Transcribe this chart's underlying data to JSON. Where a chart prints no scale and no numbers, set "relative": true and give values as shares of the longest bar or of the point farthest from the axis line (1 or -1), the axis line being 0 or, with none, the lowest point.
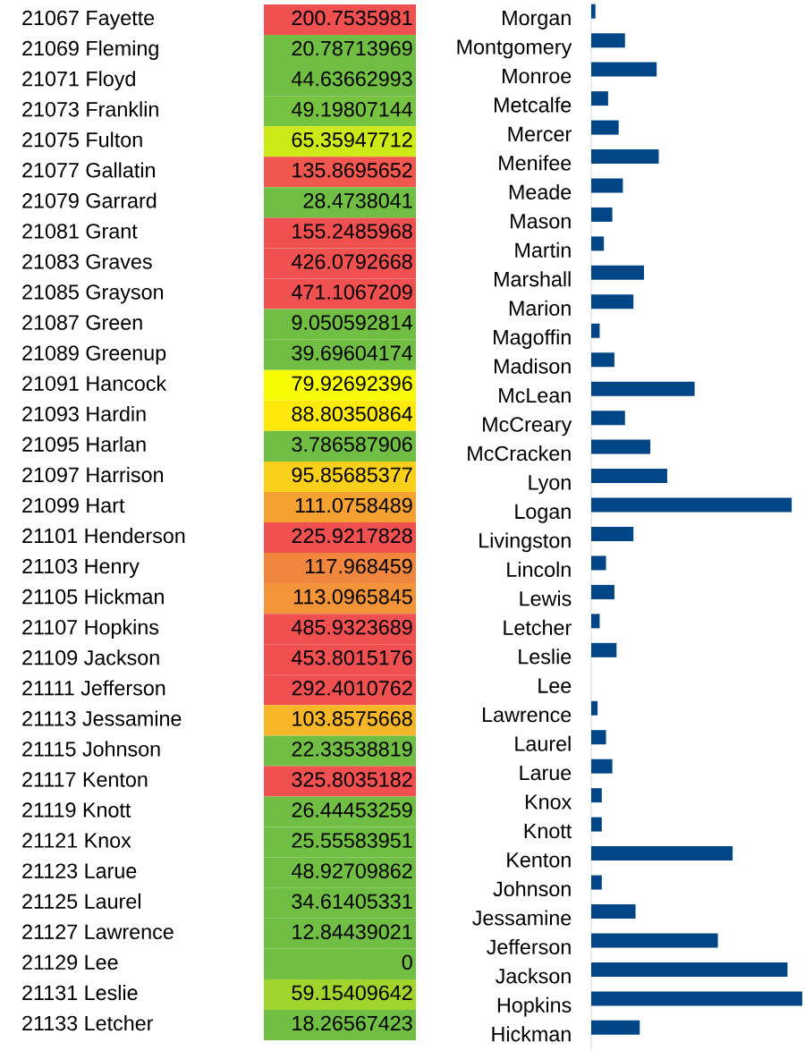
{
  "chart_data": [
    {
      "type": "heatmap",
      "data_labels": true,
      "categories": [
        null
      ],
      "y_categories": [
        "21067 Fayette",
        "21069 Fleming",
        "21071 Floyd",
        "21073 Franklin",
        "21075 Fulton",
        "21077 Gallatin",
        "21079 Garrard",
        "21081 Grant",
        "21083 Graves",
        "21085 Grayson",
        "21087 Green",
        "21089 Greenup",
        "21091 Hancock",
        "21093 Hardin",
        "21095 Harlan",
        "21097 Harrison",
        "21099 Hart",
        "21101 Henderson",
        "21103 Henry",
        "21105 Hickman",
        "21107 Hopkins",
        "21109 Jackson",
        "21111 Jefferson",
        "21113 Jessamine",
        "21115 Johnson",
        "21117 Kenton",
        "21119 Knott",
        "21121 Knox",
        "21123 Larue",
        "21125 Laurel",
        "21127 Lawrence",
        "21129 Lee",
        "21131 Leslie",
        "21133 Letcher"
      ],
      "cells": [
        [
          200.7535981
        ],
        [
          20.78713969
        ],
        [
          44.63662993
        ],
        [
          49.19807144
        ],
        [
          65.35947712
        ],
        [
          135.8695652
        ],
        [
          28.4738041
        ],
        [
          155.2485968
        ],
        [
          426.0792668
        ],
        [
          471.1067209
        ],
        [
          9.050592814
        ],
        [
          39.69604174
        ],
        [
          79.92692396
        ],
        [
          88.80350864
        ],
        [
          3.786587906
        ],
        [
          95.85685377
        ],
        [
          111.0758489
        ],
        [
          225.9217828
        ],
        [
          117.968459
        ],
        [
          113.0965845
        ],
        [
          485.9323689
        ],
        [
          453.8015176
        ],
        [
          292.4010762
        ],
        [
          103.8575668
        ],
        [
          22.33538819
        ],
        [
          325.8035182
        ],
        [
          26.44453259
        ],
        [
          25.55583951
        ],
        [
          48.92709862
        ],
        [
          34.61405331
        ],
        [
          12.84439021
        ],
        [
          0
        ],
        [
          59.15409642
        ],
        [
          18.26567423
        ]
      ]
    },
    {
      "type": "bar",
      "orientation": "horizontal",
      "relative": true,
      "categories": [
        "Morgan",
        "Montgomery",
        "Monroe",
        "Metcalfe",
        "Mercer",
        "Menifee",
        "Meade",
        "Mason",
        "Martin",
        "Marshall",
        "Marion",
        "Magoffin",
        "Madison",
        "McLean",
        "McCreary",
        "McCracken",
        "Lyon",
        "Logan",
        "Livingston",
        "Lincoln",
        "Lewis",
        "Letcher",
        "Leslie",
        "Lee",
        "Lawrence",
        "Laurel",
        "Larue",
        "Knox",
        "Knott",
        "Kenton",
        "Johnson",
        "Jessamine",
        "Jefferson",
        "Jackson",
        "Hopkins",
        "Hickman"
      ],
      "values": [
        0.02,
        0.16,
        0.31,
        0.08,
        0.13,
        0.32,
        0.15,
        0.1,
        0.06,
        0.25,
        0.2,
        0.04,
        0.11,
        0.49,
        0.16,
        0.28,
        0.36,
        0.95,
        0.2,
        0.07,
        0.11,
        0.04,
        0.12,
        0,
        0.03,
        0.07,
        0.1,
        0.05,
        0.05,
        0.67,
        0.05,
        0.21,
        0.6,
        0.93,
        1,
        0.23
      ],
      "color": "#004586"
    }
  ]
}
